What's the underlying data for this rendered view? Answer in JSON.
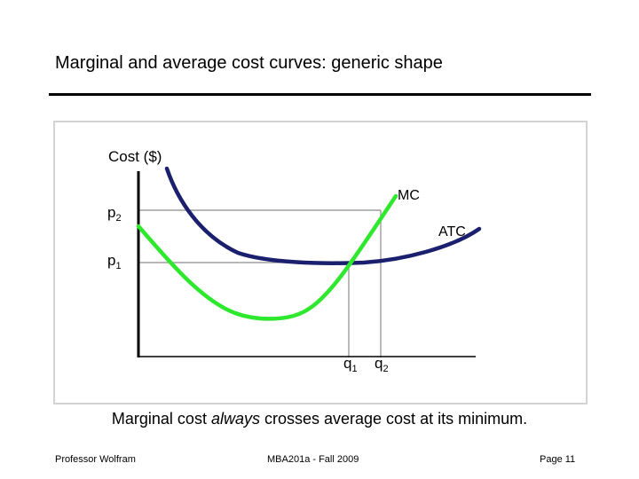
{
  "slide": {
    "title": "Marginal and average cost curves: generic shape",
    "caption": {
      "before": "Marginal cost ",
      "emphasis": "always",
      "after": " crosses average cost at its minimum."
    }
  },
  "diagram": {
    "y_axis_label": "Cost ($)",
    "curves": [
      {
        "label": "MC",
        "color": "#2ee82e"
      },
      {
        "label": "ATC",
        "color": "#1a1f6e"
      }
    ],
    "price_labels": [
      {
        "base": "p",
        "sub": "2"
      },
      {
        "base": "p",
        "sub": "1"
      }
    ],
    "quantity_labels": [
      {
        "base": "q",
        "sub": "1"
      },
      {
        "base": "q",
        "sub": "2"
      }
    ],
    "axis_color": "#000000",
    "guide_color": "#8c8c8c"
  },
  "footer": {
    "left": "Professor Wolfram",
    "center": "MBA201a - Fall 2009",
    "right": "Page 11"
  }
}
